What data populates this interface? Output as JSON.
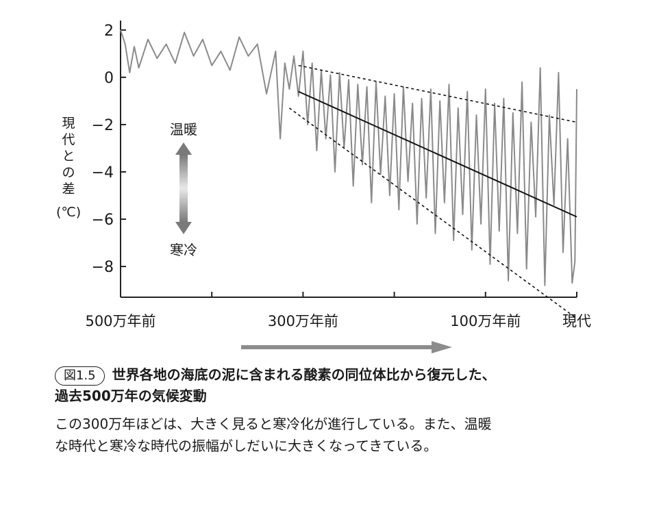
{
  "chart_data": {
    "type": "line",
    "ylabel_chars": [
      "現",
      "代",
      "と",
      "の",
      "差"
    ],
    "ylabel_unit": "(℃)",
    "ylim": [
      -9.3,
      2.4
    ],
    "yticks": [
      2,
      0,
      -2,
      -4,
      -6,
      -8
    ],
    "ytick_labels": [
      "2",
      "0",
      "−2",
      "−4",
      "−6",
      "−8"
    ],
    "xlim_myr_ago": [
      500,
      0
    ],
    "x_reversed": true,
    "xticks_myr_ago": [
      500,
      400,
      300,
      200,
      100,
      0
    ],
    "xtick_labels": [
      {
        "at": 500,
        "text": "500万年前"
      },
      {
        "at": 300,
        "text": "300万年前"
      },
      {
        "at": 100,
        "text": "100万年前"
      },
      {
        "at": 0,
        "text": "現代"
      }
    ],
    "annotations": {
      "warm": "温暖",
      "cold": "寒冷"
    },
    "series": [
      {
        "style": "gray-oscillating",
        "x_myr_ago": [
          500,
          495,
          490,
          485,
          480,
          470,
          460,
          450,
          440,
          430,
          420,
          410,
          400,
          390,
          380,
          370,
          360,
          350,
          340,
          330,
          325,
          320,
          315,
          310,
          305,
          300,
          295,
          290,
          285,
          280,
          275,
          270,
          265,
          260,
          255,
          250,
          245,
          240,
          235,
          230,
          225,
          220,
          215,
          210,
          205,
          200,
          195,
          190,
          185,
          180,
          175,
          170,
          165,
          160,
          155,
          150,
          145,
          140,
          135,
          130,
          125,
          120,
          115,
          110,
          105,
          100,
          95,
          90,
          85,
          80,
          75,
          70,
          65,
          60,
          55,
          50,
          45,
          40,
          35,
          30,
          25,
          20,
          15,
          10,
          5,
          2,
          0
        ],
        "y": [
          2.0,
          1.4,
          0.2,
          1.3,
          0.4,
          1.6,
          0.8,
          1.4,
          0.6,
          1.9,
          0.9,
          1.6,
          0.5,
          1.1,
          0.3,
          1.7,
          0.9,
          1.4,
          -0.7,
          1.1,
          -2.6,
          0.6,
          -0.5,
          0.9,
          -0.8,
          1.1,
          -2.0,
          0.6,
          -3.1,
          0.3,
          -2.6,
          0.1,
          -4.0,
          0.2,
          -3.0,
          -0.1,
          -4.6,
          -0.3,
          -3.7,
          -0.4,
          -5.3,
          -0.2,
          -4.1,
          -0.8,
          -5.0,
          -0.7,
          -5.6,
          -0.4,
          -4.4,
          -1.1,
          -6.2,
          -0.9,
          -5.1,
          -0.5,
          -6.6,
          -1.0,
          -5.3,
          -0.3,
          -6.9,
          -1.3,
          -5.8,
          -0.6,
          -7.3,
          -1.6,
          -6.2,
          -0.5,
          -7.9,
          -1.1,
          -6.5,
          -0.9,
          -8.6,
          -1.5,
          -6.6,
          -0.2,
          -8.1,
          -1.9,
          -5.9,
          0.4,
          -8.8,
          -1.6,
          -5.4,
          0.2,
          -7.4,
          -2.6,
          -8.7,
          -7.8,
          -0.5
        ]
      },
      {
        "style": "trend-solid",
        "x_myr_ago": [
          305,
          0
        ],
        "y": [
          -0.6,
          -5.9
        ]
      },
      {
        "style": "envelope-dashed",
        "x_myr_ago": [
          305,
          0
        ],
        "y": [
          0.5,
          -1.9
        ]
      },
      {
        "style": "envelope-dashed",
        "x_myr_ago": [
          315,
          0
        ],
        "y": [
          -1.3,
          -10.2
        ]
      }
    ]
  },
  "caption": {
    "figure_label": "図1.5",
    "title_line1": "世界各地の海底の泥に含まれる酸素の同位体比から復元した、",
    "title_line2": "過去500万年の気候変動",
    "body_line1": "この300万年ほどは、大きく見ると寒冷化が進行している。また、温暖",
    "body_line2": "な時代と寒冷な時代の振幅がしだいに大きくなってきている。"
  }
}
